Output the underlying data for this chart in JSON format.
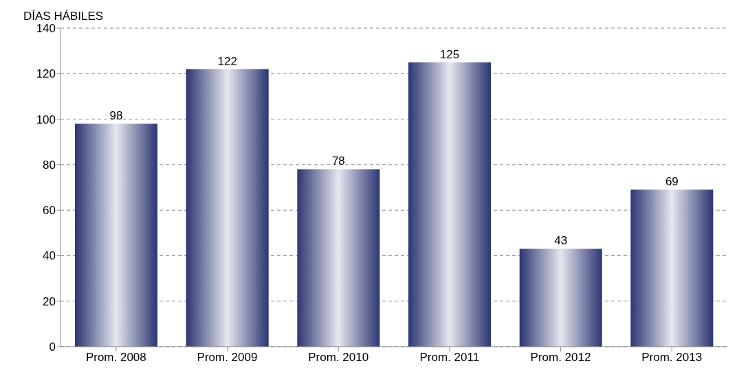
{
  "chart_data": {
    "type": "bar",
    "ylabel": "DÍAS HÁBILES",
    "categories": [
      "Prom. 2008",
      "Prom. 2009",
      "Prom. 2010",
      "Prom. 2011",
      "Prom. 2012",
      "Prom. 2013"
    ],
    "values": [
      98,
      122,
      78,
      125,
      43,
      69
    ],
    "color": "#2b3572",
    "ylim": [
      0,
      140
    ],
    "yticks": [
      0,
      20,
      40,
      60,
      80,
      100,
      120,
      140
    ],
    "grid": "y",
    "data_labels": true
  }
}
